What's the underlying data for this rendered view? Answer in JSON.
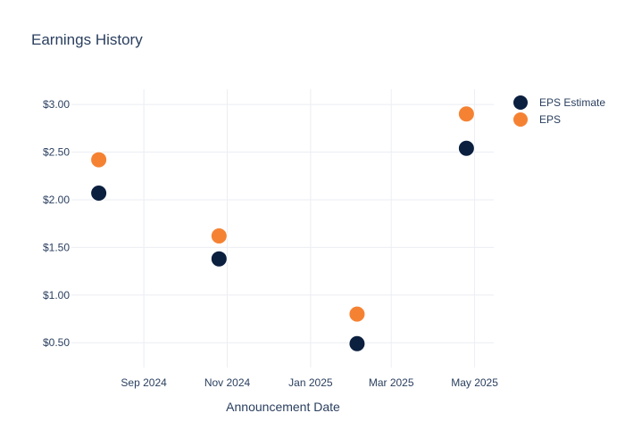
{
  "chart_data": {
    "type": "scatter",
    "title": "Earnings History",
    "xlabel": "Announcement Date",
    "ylabel": "",
    "x_ticks": [
      {
        "date": "2024-09-01",
        "label": "Sep 2024"
      },
      {
        "date": "2024-11-01",
        "label": "Nov 2024"
      },
      {
        "date": "2025-01-01",
        "label": "Jan 2025"
      },
      {
        "date": "2025-03-01",
        "label": "Mar 2025"
      },
      {
        "date": "2025-05-01",
        "label": "May 2025"
      }
    ],
    "y_ticks": [
      {
        "value": 0.5,
        "label": "$0.50"
      },
      {
        "value": 1.0,
        "label": "$1.00"
      },
      {
        "value": 1.5,
        "label": "$1.50"
      },
      {
        "value": 2.0,
        "label": "$2.00"
      },
      {
        "value": 2.5,
        "label": "$2.50"
      },
      {
        "value": 3.0,
        "label": "$3.00"
      }
    ],
    "xlim": [
      "2024-07-10",
      "2025-05-15"
    ],
    "ylim": [
      0.24,
      3.16
    ],
    "grid": true,
    "legend_position": "top-right",
    "series": [
      {
        "name": "EPS Estimate",
        "color": "#0b1f3f",
        "points": [
          {
            "x": "2024-07-30",
            "y": 2.07
          },
          {
            "x": "2024-10-26",
            "y": 1.38
          },
          {
            "x": "2025-02-04",
            "y": 0.49
          },
          {
            "x": "2025-04-25",
            "y": 2.54
          }
        ]
      },
      {
        "name": "EPS",
        "color": "#f58233",
        "points": [
          {
            "x": "2024-07-30",
            "y": 2.42
          },
          {
            "x": "2024-10-26",
            "y": 1.62
          },
          {
            "x": "2025-02-04",
            "y": 0.8
          },
          {
            "x": "2025-04-25",
            "y": 2.9
          }
        ]
      }
    ]
  }
}
